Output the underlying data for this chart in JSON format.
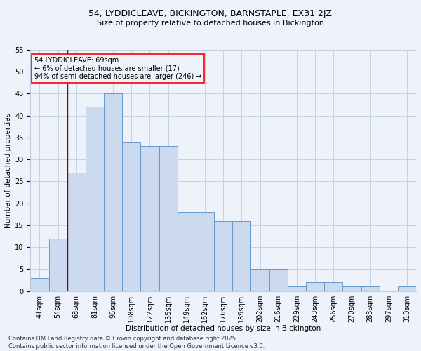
{
  "title_line1": "54, LYDDICLEAVE, BICKINGTON, BARNSTAPLE, EX31 2JZ",
  "title_line2": "Size of property relative to detached houses in Bickington",
  "xlabel": "Distribution of detached houses by size in Bickington",
  "ylabel": "Number of detached properties",
  "categories": [
    "41sqm",
    "54sqm",
    "68sqm",
    "81sqm",
    "95sqm",
    "108sqm",
    "122sqm",
    "135sqm",
    "149sqm",
    "162sqm",
    "176sqm",
    "189sqm",
    "202sqm",
    "216sqm",
    "229sqm",
    "243sqm",
    "256sqm",
    "270sqm",
    "283sqm",
    "297sqm",
    "310sqm"
  ],
  "values": [
    3,
    12,
    27,
    42,
    45,
    34,
    33,
    33,
    18,
    18,
    16,
    16,
    5,
    5,
    1,
    2,
    2,
    1,
    1,
    0,
    1
  ],
  "bar_color": "#ccdaf0",
  "bar_edge_color": "#6699cc",
  "annotation_text_line1": "54 LYDDICLEAVE: 69sqm",
  "annotation_text_line2": "← 6% of detached houses are smaller (17)",
  "annotation_text_line3": "94% of semi-detached houses are larger (246) →",
  "ylim": [
    0,
    55
  ],
  "yticks": [
    0,
    5,
    10,
    15,
    20,
    25,
    30,
    35,
    40,
    45,
    50,
    55
  ],
  "footer_line1": "Contains HM Land Registry data © Crown copyright and database right 2025.",
  "footer_line2": "Contains public sector information licensed under the Open Government Licence v3.0.",
  "bg_color": "#eef2fb",
  "grid_color": "#c0cce0",
  "title_fontsize": 9,
  "subtitle_fontsize": 8,
  "axis_label_fontsize": 7.5,
  "tick_fontsize": 7,
  "annotation_fontsize": 7,
  "footer_fontsize": 6
}
